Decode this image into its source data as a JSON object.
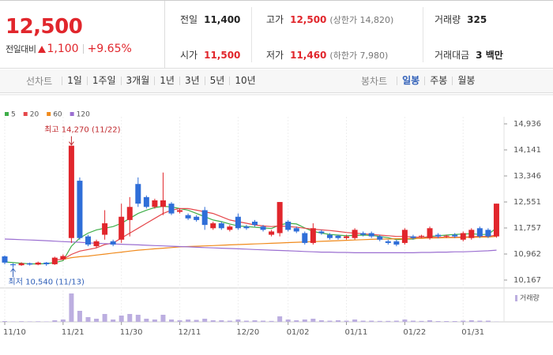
{
  "header": {
    "price": "12,500",
    "change_label": "전일대비",
    "change": "1,100",
    "change_rate": "+9.65%",
    "stats": [
      {
        "label": "전일",
        "value": "11,400"
      },
      {
        "label": "고가",
        "value": "12,500",
        "note": "(상한가 14,820)"
      },
      {
        "label": "거래량",
        "value": "325"
      },
      {
        "label": "시가",
        "value": "11,500"
      },
      {
        "label": "저가",
        "value": "11,460",
        "note": "(하한가 7,980)"
      },
      {
        "label": "거래대금",
        "value": "3 백만"
      }
    ]
  },
  "tabs": {
    "line_label": "선차트",
    "line_periods": [
      "1일",
      "1주일",
      "3개월",
      "1년",
      "3년",
      "5년",
      "10년"
    ],
    "candle_label": "봉차트",
    "candle_periods": [
      "일봉",
      "주봉",
      "월봉"
    ]
  },
  "chart_data": {
    "type": "candlestick",
    "categories": [
      "11/10",
      null,
      null,
      null,
      null,
      null,
      null,
      "11/21",
      null,
      null,
      null,
      null,
      null,
      null,
      "11/30",
      null,
      null,
      null,
      null,
      null,
      null,
      "12/11",
      null,
      null,
      null,
      null,
      null,
      null,
      "12/20",
      null,
      null,
      null,
      null,
      null,
      "01/02",
      null,
      null,
      null,
      null,
      null,
      null,
      "01/11",
      null,
      null,
      null,
      null,
      null,
      null,
      "01/22",
      null,
      null,
      null,
      null,
      null,
      null,
      "01/31",
      null,
      null,
      null,
      null
    ],
    "open": [
      10890,
      10650,
      10620,
      10680,
      10640,
      10700,
      10650,
      10800,
      11450,
      13200,
      11500,
      11200,
      11550,
      11350,
      11400,
      12000,
      13100,
      12700,
      12400,
      12400,
      12500,
      12250,
      12150,
      12100,
      12300,
      11750,
      11900,
      11700,
      12100,
      11800,
      11950,
      11800,
      11550,
      11600,
      11950,
      11750,
      11600,
      11300,
      11650,
      11550,
      11520,
      11450,
      11450,
      11600,
      11600,
      11500,
      11350,
      11350,
      11300,
      11500,
      11500,
      11450,
      11550,
      11500,
      11550,
      11400,
      11450,
      11750,
      11700,
      11500
    ],
    "high": [
      10920,
      10680,
      10710,
      10700,
      10730,
      10720,
      10880,
      10950,
      14270,
      13300,
      11550,
      11400,
      12300,
      11400,
      12500,
      12700,
      13300,
      12750,
      12650,
      13450,
      12550,
      12350,
      12200,
      12150,
      12400,
      11950,
      11950,
      11850,
      12200,
      11850,
      12000,
      11850,
      11700,
      12550,
      12000,
      11800,
      11650,
      11900,
      11700,
      11600,
      11550,
      11550,
      11750,
      11650,
      11650,
      11550,
      11400,
      11400,
      11750,
      11550,
      11550,
      11800,
      11600,
      11550,
      11600,
      11650,
      11750,
      11800,
      11750,
      12500
    ],
    "low": [
      10650,
      10540,
      10600,
      10610,
      10620,
      10600,
      10630,
      10780,
      11300,
      11400,
      11200,
      11150,
      11400,
      11200,
      11300,
      11500,
      12400,
      12350,
      12350,
      12150,
      12150,
      12200,
      12000,
      11950,
      11700,
      11700,
      11700,
      11650,
      11700,
      11700,
      11800,
      11650,
      11500,
      11500,
      11650,
      11600,
      11250,
      11250,
      11550,
      11400,
      11400,
      11400,
      11400,
      11500,
      11450,
      11350,
      11250,
      11200,
      11250,
      11400,
      11450,
      11400,
      11450,
      11450,
      11450,
      11350,
      11400,
      11450,
      11450,
      11460
    ],
    "close": [
      10700,
      10620,
      10680,
      10640,
      10700,
      10650,
      10850,
      10900,
      14270,
      11450,
      11250,
      11350,
      11900,
      11250,
      12100,
      12400,
      12500,
      12400,
      12600,
      12600,
      12200,
      12300,
      12050,
      12000,
      11850,
      11900,
      11750,
      11800,
      11750,
      11750,
      11850,
      11700,
      11650,
      12550,
      11700,
      11650,
      11300,
      11750,
      11600,
      11450,
      11450,
      11500,
      11700,
      11550,
      11500,
      11400,
      11300,
      11250,
      11700,
      11450,
      11520,
      11750,
      11500,
      11520,
      11500,
      11600,
      11700,
      11500,
      11500,
      12500
    ],
    "up_color": "#e1262c",
    "down_color": "#2f6ed8",
    "moving_averages": [
      {
        "name": "5",
        "color": "#3fae49",
        "values": [
          10720,
          10700,
          10680,
          10660,
          10660,
          10670,
          10700,
          10760,
          11200,
          11450,
          11600,
          11700,
          11750,
          11800,
          11900,
          12050,
          12200,
          12300,
          12380,
          12420,
          12400,
          12350,
          12300,
          12200,
          12100,
          12000,
          11950,
          11880,
          11820,
          11800,
          11780,
          11760,
          11740,
          11850,
          11900,
          11880,
          11760,
          11650,
          11600,
          11560,
          11540,
          11520,
          11530,
          11540,
          11530,
          11500,
          11460,
          11400,
          11420,
          11420,
          11460,
          11500,
          11520,
          11540,
          11560,
          11570,
          11580,
          11560,
          11560,
          11760
        ]
      },
      {
        "name": "20",
        "color": "#e5474b",
        "values": [
          null,
          null,
          null,
          null,
          null,
          null,
          10780,
          10800,
          10950,
          11050,
          11100,
          11150,
          11250,
          11300,
          11450,
          11600,
          11750,
          11900,
          12050,
          12200,
          12300,
          12350,
          12350,
          12300,
          12250,
          12200,
          12100,
          12000,
          11950,
          11900,
          11850,
          11820,
          11800,
          11820,
          11800,
          11780,
          11750,
          11720,
          11700,
          11680,
          11650,
          11620,
          11600,
          11580,
          11560,
          11540,
          11520,
          11500,
          11500,
          11480,
          11470,
          11470,
          11470,
          11470,
          11470,
          11480,
          11490,
          11500,
          11500,
          11540
        ]
      },
      {
        "name": "60",
        "color": "#f08a1c",
        "values": [
          null,
          null,
          null,
          null,
          null,
          null,
          null,
          10800,
          10850,
          10880,
          10900,
          10930,
          10960,
          10990,
          11020,
          11050,
          11080,
          11100,
          11120,
          11140,
          11160,
          11180,
          11190,
          11200,
          11210,
          11220,
          11230,
          11240,
          11250,
          11260,
          11270,
          11280,
          11290,
          11300,
          11310,
          11320,
          11330,
          11340,
          11350,
          11360,
          11370,
          11380,
          11390,
          11400,
          11410,
          11420,
          11420,
          11430,
          11430,
          11440,
          11440,
          11450,
          11450,
          11460,
          11460,
          11470,
          11470,
          11480,
          11480,
          11500
        ]
      },
      {
        "name": "120",
        "color": "#9b6fd1",
        "values": [
          11420,
          11410,
          11400,
          11390,
          11380,
          11370,
          11355,
          11340,
          11330,
          11320,
          11305,
          11290,
          11280,
          11270,
          11260,
          11250,
          11240,
          11230,
          11220,
          11210,
          11200,
          11190,
          11180,
          11170,
          11160,
          11150,
          11140,
          11130,
          11120,
          11110,
          11100,
          11090,
          11080,
          11070,
          11060,
          11050,
          11040,
          11030,
          11020,
          11020,
          11010,
          11010,
          11000,
          11000,
          11000,
          11000,
          11000,
          11000,
          11000,
          11000,
          11010,
          11010,
          11020,
          11020,
          11030,
          11030,
          11040,
          11050,
          11060,
          11080
        ]
      }
    ],
    "ylim": [
      9926,
      15153
    ],
    "yticks": [
      {
        "value": 14936,
        "label": "14,936"
      },
      {
        "value": 14141,
        "label": "14,141"
      },
      {
        "value": 13346,
        "label": "13,346"
      },
      {
        "value": 12551,
        "label": "12,551"
      },
      {
        "value": 11757,
        "label": "11,757"
      },
      {
        "value": 10962,
        "label": "10,962"
      },
      {
        "value": 10167,
        "label": "10,167"
      }
    ],
    "high_label": "최고 14,270 (11/22)",
    "low_label": "최저 10,540 (11/13)",
    "volume": {
      "name": "거래량",
      "color": "#bcaee0",
      "values": [
        1000,
        500,
        800,
        600,
        700,
        500,
        2000,
        3000,
        36000,
        14000,
        6000,
        4000,
        10000,
        3000,
        8000,
        10000,
        9000,
        4000,
        3000,
        9000,
        3000,
        2000,
        3000,
        2500,
        4000,
        2000,
        2000,
        1500,
        3000,
        1500,
        2000,
        1500,
        1200,
        7000,
        3000,
        2000,
        3000,
        4000,
        2000,
        1500,
        2000,
        1500,
        3000,
        1500,
        1500,
        1200,
        1200,
        1500,
        3000,
        1500,
        1200,
        2000,
        1000,
        1000,
        1000,
        1500,
        2000,
        1500,
        1500,
        325
      ],
      "ylim": [
        0,
        40000
      ]
    }
  }
}
